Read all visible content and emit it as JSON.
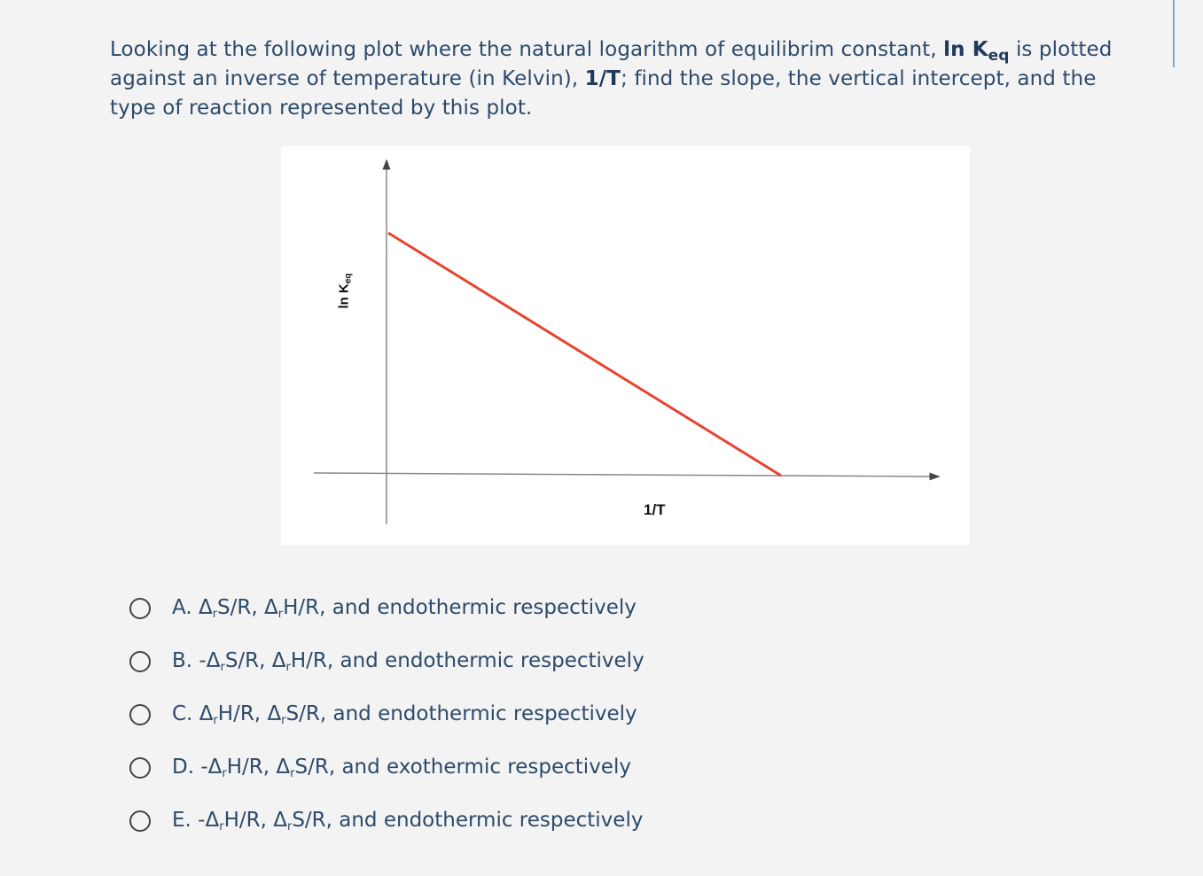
{
  "question": {
    "part1": "Looking at the following plot where the natural logarithm of equilibrim constant, ",
    "ln": "ln K",
    "eq_sub": "eq",
    "part2": " is plotted against an inverse of temperature (in Kelvin), ",
    "inv_t": "1/T",
    "part3": "; find the slope, the vertical intercept, and the type of reaction represented by this plot."
  },
  "figure": {
    "ylabel_main": "ln K",
    "ylabel_sub": "eq",
    "xlabel": "1/T",
    "line_color": "#e8432e"
  },
  "options": [
    {
      "letter": "A.",
      "text_pre": "",
      "sym1": "Δ",
      "sub1": "r",
      "mid1": "S/R, ",
      "sym2": "Δ",
      "sub2": "r",
      "mid2": "H/R, and endothermic respectively"
    },
    {
      "letter": "B.",
      "text_pre": "-",
      "sym1": "Δ",
      "sub1": "r",
      "mid1": "S/R, ",
      "sym2": "Δ",
      "sub2": "r",
      "mid2": "H/R, and endothermic respectively"
    },
    {
      "letter": "C.",
      "text_pre": "",
      "sym1": "Δ",
      "sub1": "r",
      "mid1": "H/R, ",
      "sym2": "Δ",
      "sub2": "r",
      "mid2": "S/R, and endothermic respectively"
    },
    {
      "letter": "D.",
      "text_pre": "-",
      "sym1": "Δ",
      "sub1": "r",
      "mid1": "H/R, ",
      "sym2": "Δ",
      "sub2": "r",
      "mid2": "S/R, and exothermic respectively"
    },
    {
      "letter": "E.",
      "text_pre": "-",
      "sym1": "Δ",
      "sub1": "r",
      "mid1": "H/R, ",
      "sym2": "Δ",
      "sub2": "r",
      "mid2": "S/R, and endothermic respectively"
    }
  ]
}
